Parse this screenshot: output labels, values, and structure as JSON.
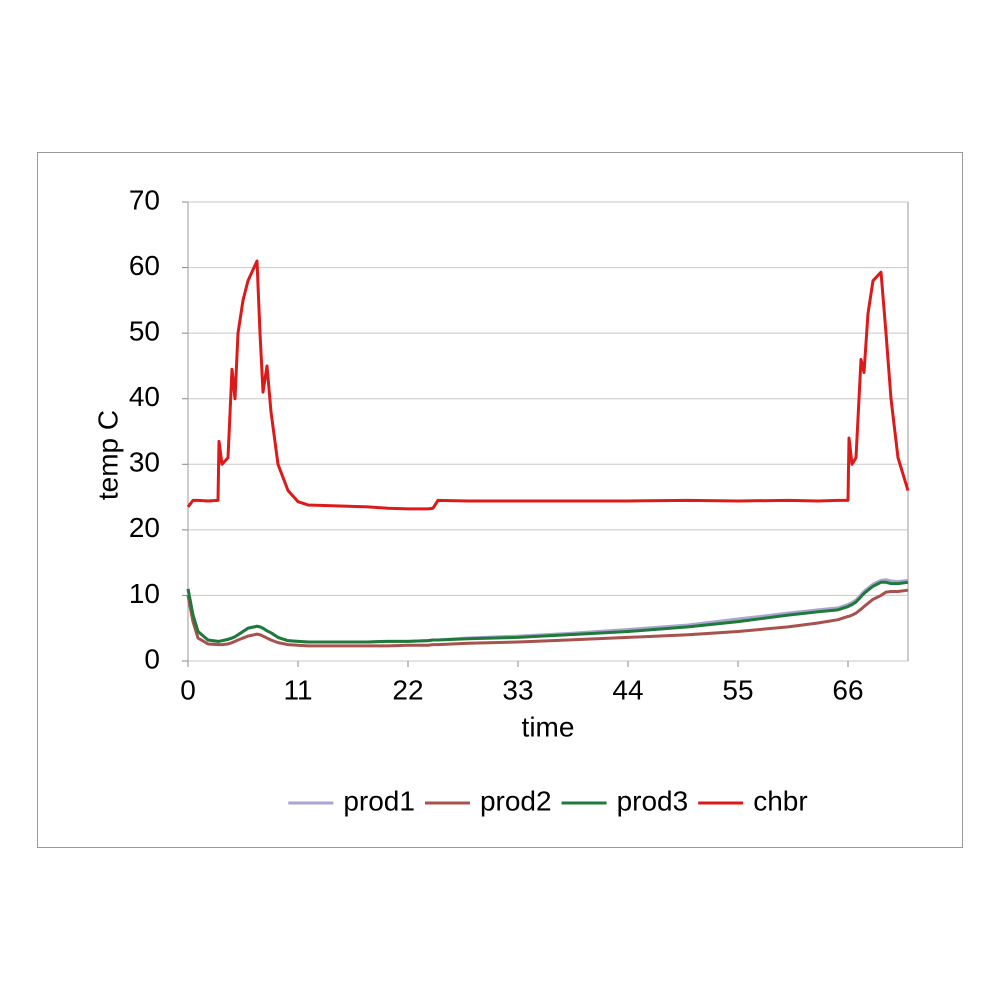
{
  "chart_data": {
    "type": "line",
    "x": [
      0,
      0.5,
      1,
      2,
      3,
      3.1,
      3.4,
      4,
      4.4,
      4.7,
      5,
      5.5,
      6,
      6.9,
      7.2,
      7.5,
      7.9,
      8.3,
      9,
      10,
      11,
      12,
      14,
      16,
      18,
      20,
      22,
      24,
      24.5,
      25,
      28,
      33,
      38,
      44,
      50,
      55,
      60,
      63,
      65,
      66,
      66.1,
      66.4,
      66.8,
      67.3,
      67.6,
      68,
      68.5,
      69.3,
      69.8,
      70.3,
      71,
      72
    ],
    "series": [
      {
        "name": "prod1",
        "color": "#aaa5d0",
        "values": [
          11,
          7,
          4.5,
          3.2,
          3,
          3,
          3.1,
          3.3,
          3.5,
          3.7,
          4,
          4.5,
          5,
          5.3,
          5.2,
          5,
          4.6,
          4.3,
          3.6,
          3.1,
          3,
          2.9,
          2.9,
          2.9,
          2.9,
          3,
          3,
          3.1,
          3.2,
          3.2,
          3.5,
          3.8,
          4.2,
          4.8,
          5.5,
          6.4,
          7.3,
          7.8,
          8.1,
          8.6,
          8.7,
          8.9,
          9.3,
          10.1,
          10.6,
          11.1,
          11.7,
          12.3,
          12.4,
          12.2,
          12.1,
          12.3
        ]
      },
      {
        "name": "prod2",
        "color": "#a8524d",
        "values": [
          10,
          6,
          3.5,
          2.6,
          2.5,
          2.5,
          2.5,
          2.6,
          2.8,
          3,
          3.2,
          3.5,
          3.8,
          4.1,
          4,
          3.8,
          3.5,
          3.2,
          2.8,
          2.5,
          2.4,
          2.3,
          2.3,
          2.3,
          2.3,
          2.3,
          2.4,
          2.4,
          2.5,
          2.5,
          2.7,
          2.9,
          3.2,
          3.6,
          4,
          4.5,
          5.2,
          5.8,
          6.3,
          6.8,
          6.8,
          7,
          7.3,
          7.9,
          8.3,
          8.8,
          9.4,
          10,
          10.5,
          10.6,
          10.6,
          10.8
        ]
      },
      {
        "name": "prod3",
        "color": "#1e7a3a",
        "values": [
          11,
          7,
          4.5,
          3.2,
          3,
          3,
          3.1,
          3.3,
          3.5,
          3.7,
          4,
          4.5,
          5,
          5.3,
          5.2,
          5,
          4.6,
          4.3,
          3.6,
          3.1,
          3,
          2.9,
          2.9,
          2.9,
          2.9,
          3,
          3,
          3.1,
          3.2,
          3.2,
          3.4,
          3.6,
          4,
          4.5,
          5.2,
          6,
          7,
          7.5,
          7.8,
          8.3,
          8.4,
          8.6,
          9,
          9.8,
          10.3,
          10.8,
          11.4,
          12,
          12,
          11.8,
          11.8,
          12
        ]
      },
      {
        "name": "chbr",
        "color": "#dd1a1a",
        "values": [
          23.5,
          24.5,
          24.5,
          24.4,
          24.5,
          33.5,
          30,
          31,
          44.5,
          40,
          50,
          55,
          58,
          61,
          50,
          41,
          45,
          38,
          30,
          26,
          24.3,
          23.8,
          23.7,
          23.6,
          23.5,
          23.3,
          23.2,
          23.2,
          23.3,
          24.5,
          24.4,
          24.4,
          24.4,
          24.4,
          24.5,
          24.4,
          24.5,
          24.4,
          24.5,
          24.5,
          34,
          30,
          31,
          46,
          44,
          53,
          58,
          59.3,
          50,
          40,
          31,
          26
        ]
      }
    ],
    "x_label": "time",
    "y_label": "temp C",
    "xlim": [
      0,
      72
    ],
    "ylim": [
      0,
      70
    ],
    "xticks": [
      0,
      11,
      22,
      33,
      44,
      55,
      66
    ],
    "yticks": [
      0,
      10,
      20,
      30,
      40,
      50,
      60,
      70
    ],
    "grid": true,
    "legend": "bottom"
  }
}
